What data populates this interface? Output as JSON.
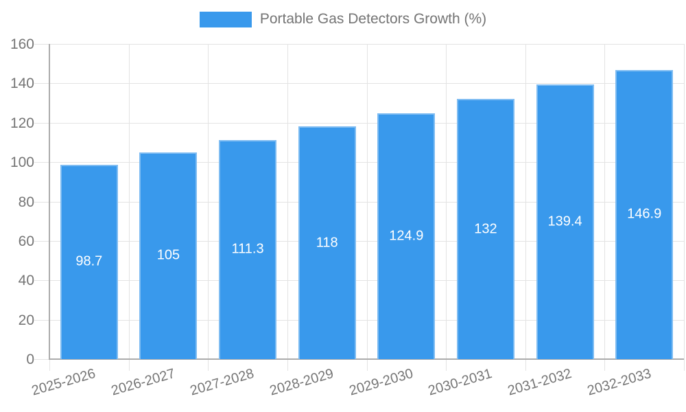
{
  "chart_data": {
    "type": "bar",
    "title": "Portable Gas Detectors Growth (%)",
    "legend_label": "Portable Gas Detectors Growth (%)",
    "legend_position": "top",
    "categories": [
      "2025-2026",
      "2026-2027",
      "2027-2028",
      "2028-2029",
      "2029-2030",
      "2030-2031",
      "2031-2032",
      "2032-2033"
    ],
    "values": [
      98.7,
      105,
      111.3,
      118,
      124.9,
      132,
      139.4,
      146.9
    ],
    "bar_labels": [
      "98.7",
      "105",
      "111.3",
      "118",
      "124.9",
      "132",
      "139.4",
      "146.9"
    ],
    "xlabel": "",
    "ylabel": "",
    "ylim": [
      0,
      160
    ],
    "ytick_step": 20,
    "ytick_labels": [
      "0",
      "20",
      "40",
      "60",
      "80",
      "100",
      "120",
      "140",
      "160"
    ],
    "grid": true,
    "colors": {
      "bar": "#3999EC",
      "bar_border": "rgba(255,255,255,0.35)",
      "bar_value_text": "#FFFFFF",
      "axis_text": "#757575",
      "legend_text": "#747474",
      "gridline": "#E3E3E3",
      "axis_line": "#ABABAB",
      "background": "#FFFFFF"
    }
  }
}
